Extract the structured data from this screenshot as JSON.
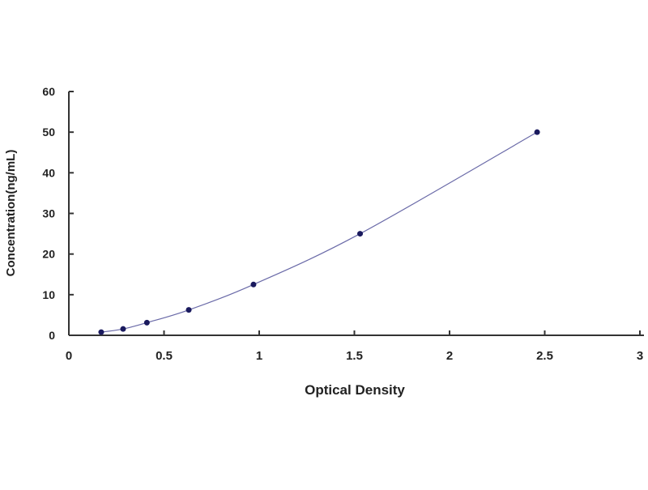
{
  "chart_data": {
    "type": "scatter",
    "title": "",
    "xlabel": "Optical Density",
    "ylabel": "Concentration(ng/mL)",
    "xlim": [
      0,
      3
    ],
    "ylim": [
      0,
      60
    ],
    "xticks": [
      "0",
      "0.5",
      "1",
      "1.5",
      "2",
      "2.5",
      "3"
    ],
    "yticks": [
      "0",
      "10",
      "20",
      "30",
      "40",
      "50",
      "60"
    ],
    "grid": false,
    "legend": "none",
    "fit_line": true,
    "series": [
      {
        "x": [
          0.17,
          0.285,
          0.41,
          0.63,
          0.97,
          1.53,
          2.46
        ],
        "y": [
          0.78,
          1.56,
          3.12,
          6.25,
          12.5,
          25,
          50
        ],
        "marker_color": "#1a1a5e",
        "line_color": "#6a6aa8"
      }
    ]
  }
}
